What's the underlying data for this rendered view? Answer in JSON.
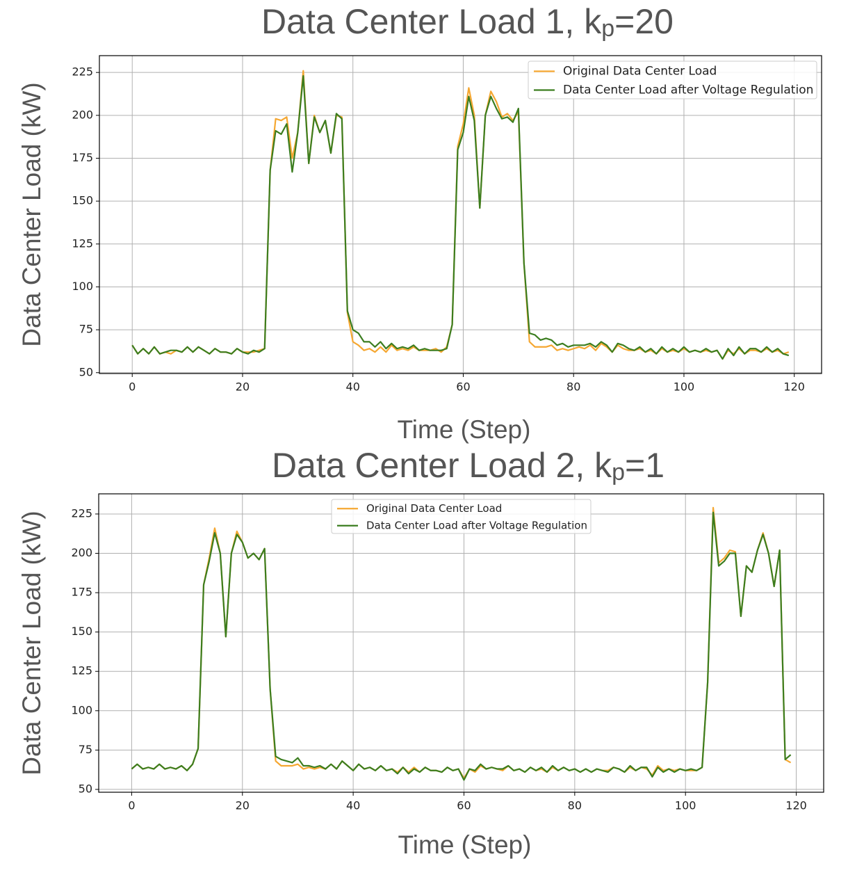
{
  "chart_data": [
    {
      "type": "line",
      "title": [
        "Data Center Load 1, k",
        "p",
        "=20"
      ],
      "xlabel": "Time (Step)",
      "ylabel": "Data Center Load (kW)",
      "x": [
        0,
        1,
        2,
        3,
        4,
        5,
        6,
        7,
        8,
        9,
        10,
        11,
        12,
        13,
        14,
        15,
        16,
        17,
        18,
        19,
        20,
        21,
        22,
        23,
        24,
        25,
        26,
        27,
        28,
        29,
        30,
        31,
        32,
        33,
        34,
        35,
        36,
        37,
        38,
        39,
        40,
        41,
        42,
        43,
        44,
        45,
        46,
        47,
        48,
        49,
        50,
        51,
        52,
        53,
        54,
        55,
        56,
        57,
        58,
        59,
        60,
        61,
        62,
        63,
        64,
        65,
        66,
        67,
        68,
        69,
        70,
        71,
        72,
        73,
        74,
        75,
        76,
        77,
        78,
        79,
        80,
        81,
        82,
        83,
        84,
        85,
        86,
        87,
        88,
        89,
        90,
        91,
        92,
        93,
        94,
        95,
        96,
        97,
        98,
        99,
        100,
        101,
        102,
        103,
        104,
        105,
        106,
        107,
        108,
        109,
        110,
        111,
        112,
        113,
        114,
        115,
        116,
        117,
        118,
        119
      ],
      "series": [
        {
          "name": "Original Data Center Load",
          "color": "#f5a731",
          "values": [
            66,
            61,
            64,
            61,
            65,
            61,
            62,
            61,
            63,
            62,
            65,
            62,
            65,
            63,
            61,
            64,
            62,
            62,
            61,
            64,
            62,
            62,
            62,
            63,
            64,
            168,
            198,
            197,
            199,
            175,
            190,
            226,
            172,
            200,
            190,
            197,
            178,
            200,
            199,
            85,
            68,
            66,
            63,
            64,
            62,
            65,
            62,
            66,
            63,
            64,
            63,
            65,
            63,
            63,
            63,
            64,
            62,
            65,
            78,
            182,
            195,
            216,
            200,
            146,
            200,
            214,
            208,
            199,
            201,
            197,
            202,
            114,
            68,
            65,
            65,
            65,
            66,
            63,
            64,
            63,
            64,
            65,
            64,
            66,
            63,
            67,
            65,
            62,
            66,
            64,
            63,
            63,
            64,
            62,
            63,
            61,
            64,
            62,
            63,
            62,
            64,
            62,
            63,
            62,
            63,
            62,
            63,
            58,
            63,
            61,
            64,
            61,
            63,
            63,
            62,
            64,
            62,
            63,
            61,
            62
          ]
        },
        {
          "name": "Data Center Load after Voltage Regulation",
          "color": "#3b7d1f",
          "values": [
            66,
            61,
            64,
            61,
            65,
            61,
            62,
            63,
            63,
            62,
            65,
            62,
            65,
            63,
            61,
            64,
            62,
            62,
            61,
            64,
            62,
            61,
            63,
            62,
            64,
            168,
            191,
            189,
            195,
            167,
            190,
            223,
            172,
            199,
            190,
            197,
            178,
            201,
            198,
            86,
            75,
            73,
            68,
            68,
            65,
            68,
            64,
            67,
            64,
            65,
            64,
            66,
            63,
            64,
            63,
            63,
            63,
            64,
            78,
            180,
            190,
            211,
            197,
            146,
            200,
            211,
            204,
            198,
            199,
            196,
            204,
            114,
            73,
            72,
            69,
            70,
            69,
            66,
            67,
            65,
            66,
            66,
            66,
            67,
            65,
            68,
            66,
            62,
            67,
            66,
            64,
            63,
            65,
            62,
            64,
            61,
            65,
            62,
            64,
            62,
            65,
            62,
            63,
            62,
            64,
            62,
            63,
            58,
            64,
            60,
            65,
            61,
            64,
            64,
            62,
            65,
            62,
            64,
            61,
            60
          ]
        }
      ],
      "xlim": [
        -5.95,
        124.95
      ],
      "ylim": [
        49.5,
        234.8
      ],
      "xticks": [
        0,
        20,
        40,
        60,
        80,
        100,
        120
      ],
      "yticks": [
        50,
        75,
        100,
        125,
        150,
        175,
        200,
        225
      ],
      "grid": true,
      "legend": "upper right"
    },
    {
      "type": "line",
      "title": [
        "Data Center Load 2, k",
        "p",
        "=1"
      ],
      "xlabel": "Time (Step)",
      "ylabel": "Data Center Load (kW)",
      "x": [
        0,
        1,
        2,
        3,
        4,
        5,
        6,
        7,
        8,
        9,
        10,
        11,
        12,
        13,
        14,
        15,
        16,
        17,
        18,
        19,
        20,
        21,
        22,
        23,
        24,
        25,
        26,
        27,
        28,
        29,
        30,
        31,
        32,
        33,
        34,
        35,
        36,
        37,
        38,
        39,
        40,
        41,
        42,
        43,
        44,
        45,
        46,
        47,
        48,
        49,
        50,
        51,
        52,
        53,
        54,
        55,
        56,
        57,
        58,
        59,
        60,
        61,
        62,
        63,
        64,
        65,
        66,
        67,
        68,
        69,
        70,
        71,
        72,
        73,
        74,
        75,
        76,
        77,
        78,
        79,
        80,
        81,
        82,
        83,
        84,
        85,
        86,
        87,
        88,
        89,
        90,
        91,
        92,
        93,
        94,
        95,
        96,
        97,
        98,
        99,
        100,
        101,
        102,
        103,
        104,
        105,
        106,
        107,
        108,
        109,
        110,
        111,
        112,
        113,
        114,
        115,
        116,
        117,
        118,
        119
      ],
      "series": [
        {
          "name": "Original Data Center Load",
          "color": "#f5a731",
          "values": [
            63,
            66,
            63,
            64,
            63,
            66,
            63,
            64,
            63,
            65,
            62,
            66,
            76,
            180,
            197,
            216,
            200,
            147,
            200,
            214,
            207,
            197,
            200,
            196,
            203,
            114,
            68,
            65,
            65,
            65,
            66,
            63,
            64,
            63,
            64,
            63,
            66,
            63,
            68,
            65,
            62,
            66,
            63,
            64,
            62,
            65,
            62,
            63,
            61,
            64,
            61,
            64,
            61,
            64,
            62,
            62,
            61,
            64,
            62,
            63,
            57,
            63,
            61,
            65,
            63,
            64,
            63,
            62,
            65,
            62,
            63,
            61,
            64,
            62,
            63,
            61,
            64,
            62,
            64,
            62,
            63,
            61,
            63,
            61,
            63,
            62,
            62,
            64,
            63,
            61,
            64,
            62,
            64,
            63,
            59,
            65,
            62,
            63,
            62,
            63,
            62,
            62,
            62,
            64,
            118,
            229,
            194,
            197,
            202,
            201,
            160,
            192,
            188,
            202,
            213,
            200,
            179,
            202,
            69,
            67
          ]
        },
        {
          "name": "Data Center Load after Voltage Regulation",
          "color": "#3b7d1f",
          "values": [
            63,
            66,
            63,
            64,
            63,
            66,
            63,
            64,
            63,
            65,
            62,
            66,
            76,
            180,
            195,
            213,
            200,
            147,
            200,
            212,
            207,
            197,
            200,
            196,
            203,
            114,
            71,
            69,
            68,
            67,
            70,
            65,
            65,
            64,
            65,
            63,
            66,
            63,
            68,
            65,
            62,
            66,
            63,
            64,
            62,
            65,
            62,
            63,
            60,
            64,
            60,
            63,
            61,
            64,
            62,
            62,
            61,
            64,
            62,
            63,
            56,
            63,
            62,
            66,
            63,
            64,
            63,
            63,
            65,
            62,
            63,
            61,
            64,
            62,
            64,
            61,
            65,
            62,
            64,
            62,
            63,
            61,
            63,
            61,
            63,
            62,
            61,
            64,
            63,
            61,
            65,
            62,
            64,
            64,
            58,
            64,
            61,
            63,
            61,
            63,
            62,
            63,
            62,
            64,
            118,
            226,
            192,
            195,
            200,
            200,
            160,
            192,
            188,
            202,
            212,
            200,
            179,
            202,
            69,
            72
          ]
        }
      ],
      "xlim": [
        -5.95,
        124.95
      ],
      "ylim": [
        48.2,
        237.8
      ],
      "xticks": [
        0,
        20,
        40,
        60,
        80,
        100,
        120
      ],
      "yticks": [
        50,
        75,
        100,
        125,
        150,
        175,
        200,
        225
      ],
      "grid": true,
      "legend": "upper center"
    }
  ]
}
